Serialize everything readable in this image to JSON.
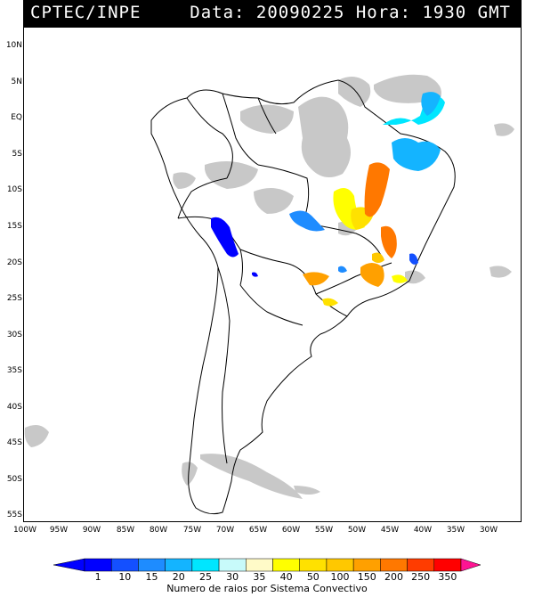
{
  "header": {
    "source": "CPTEC/INPE",
    "datetime": "Data: 20090225 Hora: 1930 GMT"
  },
  "axes": {
    "latitude_labels": [
      "10N",
      "5N",
      "EQ",
      "5S",
      "10S",
      "15S",
      "20S",
      "25S",
      "30S",
      "35S",
      "40S",
      "45S",
      "50S",
      "55S"
    ],
    "longitude_labels": [
      "100W",
      "95W",
      "90W",
      "85W",
      "80W",
      "75W",
      "70W",
      "65W",
      "60W",
      "55W",
      "50W",
      "45W",
      "40W",
      "35W",
      "30W"
    ]
  },
  "legend": {
    "title": "Numero de raios por Sistema Convectivo",
    "classes": [
      {
        "label": "1",
        "color": "#0000ff"
      },
      {
        "label": "10",
        "color": "#1450ff"
      },
      {
        "label": "15",
        "color": "#1e8cff"
      },
      {
        "label": "20",
        "color": "#14b4ff"
      },
      {
        "label": "25",
        "color": "#00e6ff"
      },
      {
        "label": "30",
        "color": "#c8fafa"
      },
      {
        "label": "35",
        "color": "#fffac8"
      },
      {
        "label": "40",
        "color": "#ffff00"
      },
      {
        "label": "50",
        "color": "#ffe100"
      },
      {
        "label": "100",
        "color": "#ffc800"
      },
      {
        "label": "150",
        "color": "#ffa000"
      },
      {
        "label": "200",
        "color": "#ff7800"
      },
      {
        "label": "250",
        "color": "#ff3c00"
      },
      {
        "label": "350",
        "color": "#ff0000"
      }
    ],
    "low_color": "#0000ff",
    "high_color": "#ff1493"
  },
  "colors": {
    "cloud": "#c8c8c8",
    "coast": "#000000"
  }
}
